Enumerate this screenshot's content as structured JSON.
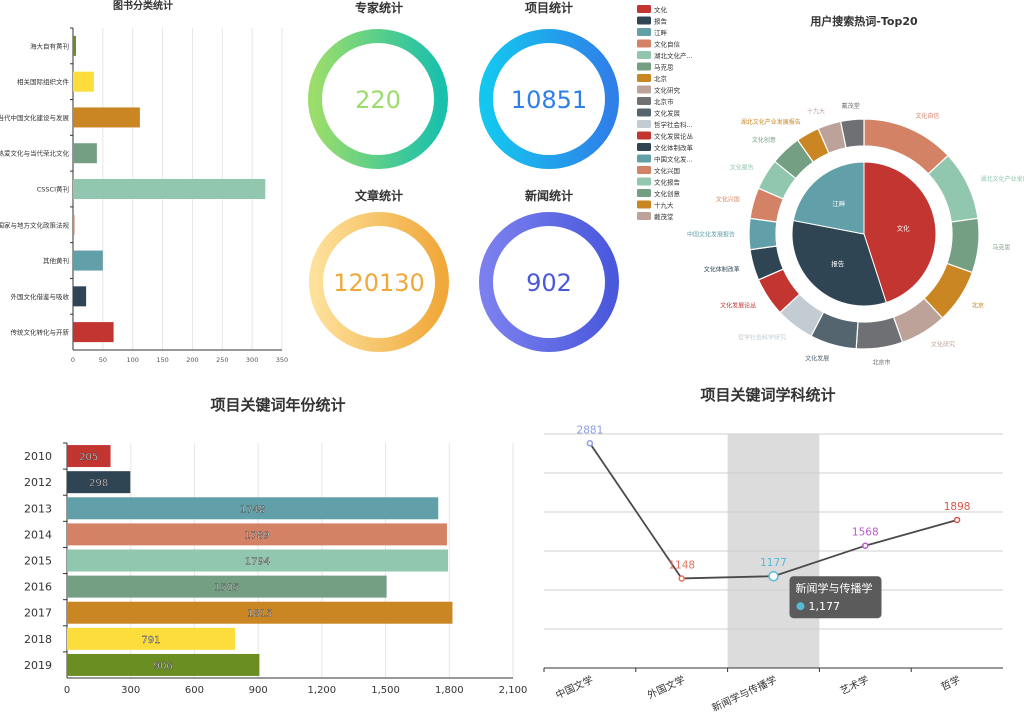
{
  "colors": {
    "palette": [
      "#c23531",
      "#2f4554",
      "#61a0a8",
      "#d48265",
      "#91c7ae",
      "#749f83",
      "#ca8622",
      "#bda29a",
      "#6e7074",
      "#546570",
      "#c4ccd3"
    ],
    "yellow": "#fddd3b",
    "olive": "#6b8e23",
    "expert_grad": [
      "#9bdd6b",
      "#19c0ab"
    ],
    "project_grad": [
      "#14c7ef",
      "#2f7fe9"
    ],
    "article_grad": [
      "#fde09a",
      "#f0a83a"
    ],
    "news_grad": [
      "#7b80ee",
      "#4a58dc"
    ],
    "tooltip_bg": "#5b5b5b",
    "highlight_band": "#dcdcdc",
    "line_color": "#4a4a4a"
  },
  "chart_data": [
    {
      "id": "book-category",
      "type": "bar",
      "orientation": "horizontal",
      "title": "图书分类统计",
      "categories": [
        "海大自有黄刊",
        "相关国际组织文件",
        "当代中国文化建设与发展",
        "热爱文化与当代荣北文化",
        "CSSCI黄刊",
        "国家与地方文化政策法规",
        "其他黄刊",
        "外国文化借鉴与吸收",
        "传统文化转化与开新"
      ],
      "values": [
        5,
        35,
        112,
        40,
        322,
        2,
        50,
        22,
        68
      ],
      "bar_colors": [
        "#6b8e23",
        "#fddd3b",
        "#ca8622",
        "#749f83",
        "#91c7ae",
        "#d48265",
        "#61a0a8",
        "#2f4554",
        "#c23531"
      ],
      "xlim": [
        0,
        350
      ],
      "xticks": [
        "0",
        "50",
        "100",
        "150",
        "200",
        "250",
        "300",
        "350"
      ]
    },
    {
      "id": "stat-gauges",
      "type": "other",
      "items": [
        {
          "label": "专家统计",
          "value": "220"
        },
        {
          "label": "项目统计",
          "value": "10851"
        },
        {
          "label": "文章统计",
          "value": "120130"
        },
        {
          "label": "新闻统计",
          "value": "902"
        }
      ]
    },
    {
      "id": "search-hotwords",
      "type": "pie",
      "title": "用户搜索热词-Top20",
      "legend_position": "top-left",
      "legend": [
        "文化",
        "报告",
        "江畔",
        "文化自信",
        "湖北文化产...",
        "马克思",
        "北京",
        "文化研究",
        "北京市",
        "文化发展",
        "哲学社会科...",
        "文化发展论丛",
        "文化体制改革",
        "中国文化发...",
        "文化兴国",
        "文化报告",
        "文化创意",
        "十九大",
        "戴茂堂"
      ],
      "inner": [
        {
          "name": "文化",
          "value": 45
        },
        {
          "name": "报告",
          "value": 33
        },
        {
          "name": "江畔",
          "value": 22
        }
      ],
      "outer": [
        {
          "name": "文化自信",
          "value": 12
        },
        {
          "name": "湖北文化产业发展报告",
          "value": 9
        },
        {
          "name": "马克思",
          "value": 7
        },
        {
          "name": "北京",
          "value": 7
        },
        {
          "name": "文化研究",
          "value": 6
        },
        {
          "name": "北京市",
          "value": 6
        },
        {
          "name": "文化发展",
          "value": 6
        },
        {
          "name": "哲学社会科学研究",
          "value": 5
        },
        {
          "name": "文化发展论丛",
          "value": 5
        },
        {
          "name": "文化体制改革",
          "value": 4
        },
        {
          "name": "中国文化发展报告",
          "value": 4
        },
        {
          "name": "文化兴国",
          "value": 4
        },
        {
          "name": "文化报告",
          "value": 4
        },
        {
          "name": "文化创意",
          "value": 4
        },
        {
          "name": "湖北文化产业发展报告",
          "value": 3
        },
        {
          "name": "十九大",
          "value": 3
        },
        {
          "name": "戴茂堂",
          "value": 3
        }
      ]
    },
    {
      "id": "keyword-year",
      "type": "bar",
      "orientation": "horizontal",
      "title": "项目关键词年份统计",
      "categories": [
        "2010",
        "2012",
        "2013",
        "2014",
        "2015",
        "2016",
        "2017",
        "2018",
        "2019"
      ],
      "values": [
        205,
        298,
        1748,
        1789,
        1794,
        1505,
        1815,
        791,
        906
      ],
      "labels": [
        "205",
        "298",
        "1748",
        "1789",
        "1794",
        "1505",
        "1815",
        "791",
        "906"
      ],
      "bar_colors": [
        "#c23531",
        "#2f4554",
        "#61a0a8",
        "#d48265",
        "#91c7ae",
        "#749f83",
        "#ca8622",
        "#fddd3b",
        "#6b8e23"
      ],
      "xlim": [
        0,
        2100
      ],
      "xticks": [
        "0",
        "300",
        "600",
        "900",
        "1,200",
        "1,500",
        "1,800",
        "2,100"
      ]
    },
    {
      "id": "keyword-discipline",
      "type": "line",
      "title": "项目关键词学科统计",
      "categories": [
        "中国文学",
        "外国文学",
        "新闻学与传播学",
        "艺术学",
        "哲学"
      ],
      "values": [
        2881,
        1148,
        1177,
        1568,
        1898
      ],
      "labels": [
        "2881",
        "1148",
        "1177",
        "1568",
        "1898"
      ],
      "point_colors": [
        "#8e9ee8",
        "#e8705b",
        "#56b9d6",
        "#b85cc7",
        "#d9564b"
      ],
      "ylim": [
        0,
        3000
      ],
      "highlight_index": 2,
      "tooltip": {
        "title": "新闻学与传播学",
        "value": "1,177"
      }
    }
  ]
}
